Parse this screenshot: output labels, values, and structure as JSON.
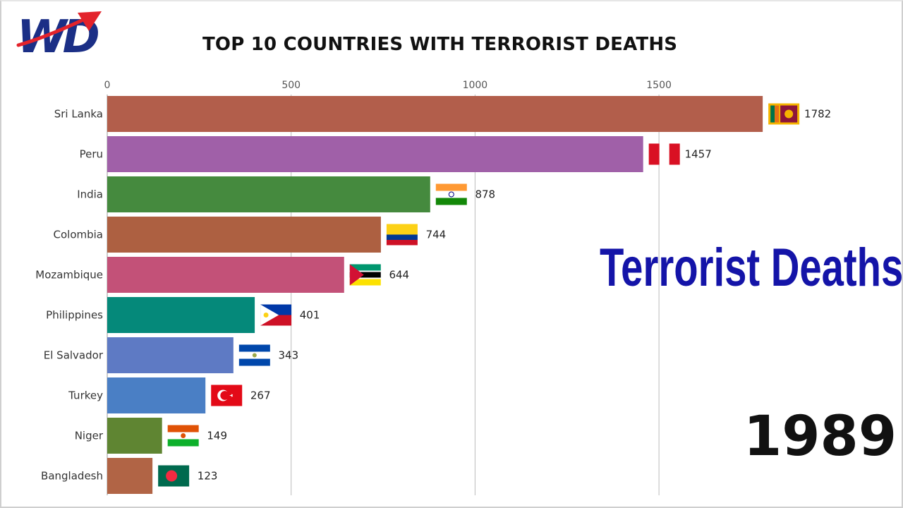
{
  "logo": {
    "text": "WD",
    "icon": "wd-logo-arrow-icon",
    "colors": {
      "letters": "#1b2f86",
      "arrow": "#e3232b"
    }
  },
  "overlay_title": "Terrorist Deaths",
  "year": "1989",
  "colors": {
    "overlay_title": "#1414a8",
    "title": "#111111",
    "gridline": "#bbbbbb"
  },
  "chart_data": {
    "type": "bar",
    "orientation": "horizontal",
    "title": "TOP 10 COUNTRIES WITH TERRORIST DEATHS",
    "xlabel": "",
    "ylabel": "",
    "xlim": [
      0,
      1800
    ],
    "xticks": [
      0,
      500,
      1000,
      1500
    ],
    "grid": "vertical",
    "categories": [
      "Sri Lanka",
      "Peru",
      "India",
      "Colombia",
      "Mozambique",
      "Philippines",
      "El Salvador",
      "Turkey",
      "Niger",
      "Bangladesh"
    ],
    "values": [
      1782,
      1457,
      878,
      744,
      644,
      401,
      343,
      267,
      149,
      123
    ],
    "bar_colors": [
      "#b25e4b",
      "#a060a8",
      "#458a3e",
      "#ad6041",
      "#c35178",
      "#05897a",
      "#5e7ac4",
      "#4a7fc5",
      "#5f8532",
      "#b16445"
    ],
    "flags": [
      "sri-lanka-flag-icon",
      "peru-flag-icon",
      "india-flag-icon",
      "colombia-flag-icon",
      "mozambique-flag-icon",
      "philippines-flag-icon",
      "el-salvador-flag-icon",
      "turkey-flag-icon",
      "niger-flag-icon",
      "bangladesh-flag-icon"
    ]
  }
}
